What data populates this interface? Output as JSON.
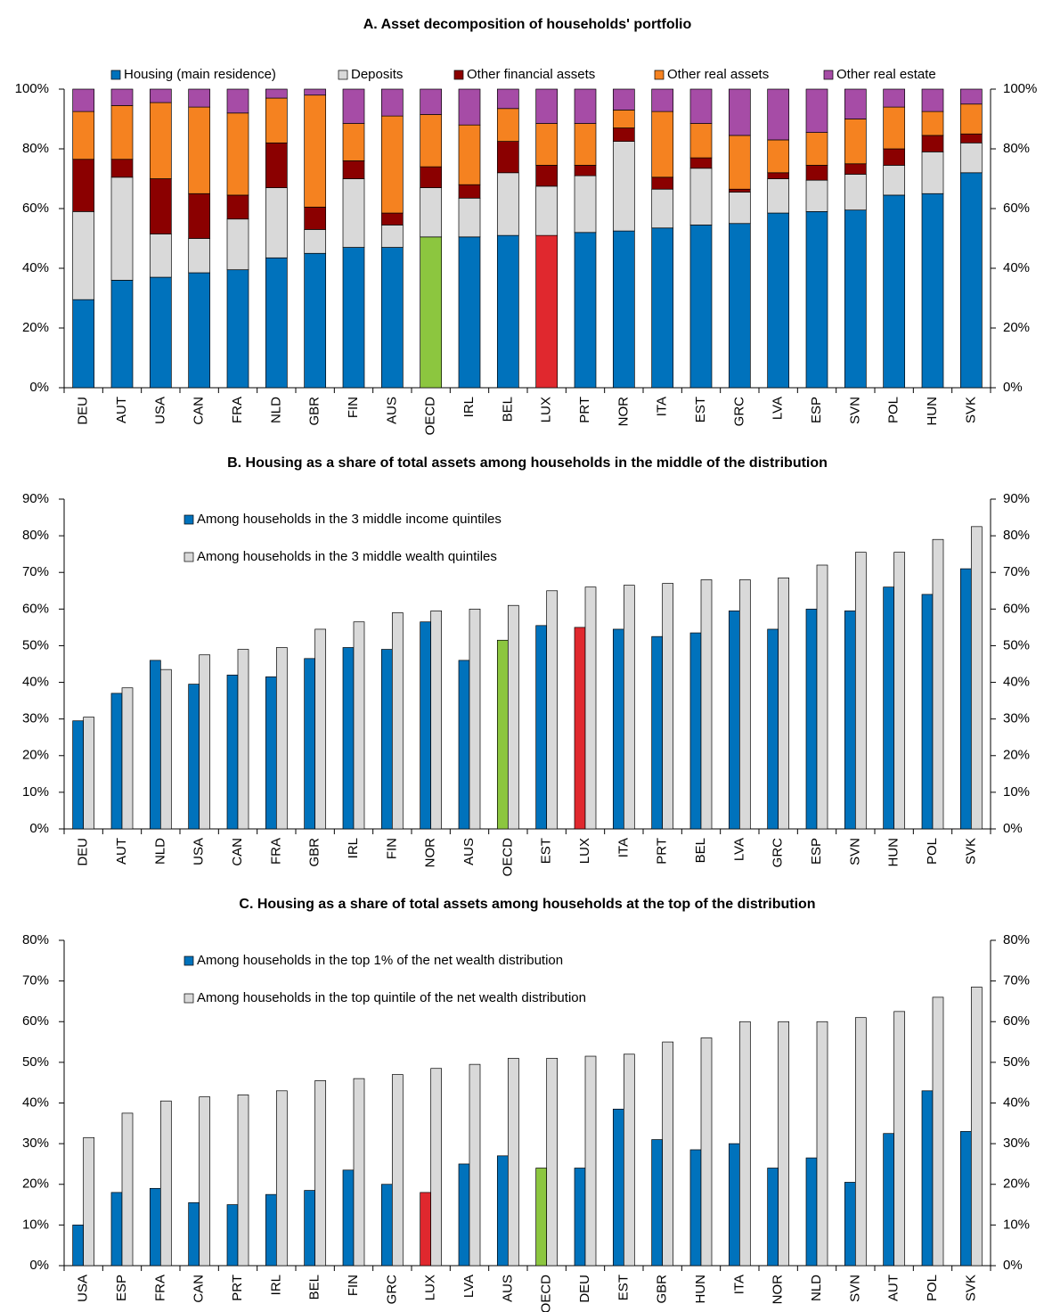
{
  "chart_data": [
    {
      "type": "stacked_bar",
      "title": "A. Asset decomposition of households' portfolio",
      "legend": "top",
      "categories": [
        "DEU",
        "AUT",
        "USA",
        "CAN",
        "FRA",
        "NLD",
        "GBR",
        "FIN",
        "AUS",
        "OECD",
        "IRL",
        "BEL",
        "LUX",
        "PRT",
        "NOR",
        "ITA",
        "EST",
        "GRC",
        "LVA",
        "ESP",
        "SVN",
        "POL",
        "HUN",
        "SVK"
      ],
      "series": [
        {
          "name": "Housing (main residence)",
          "color": "#0072bc",
          "colors": [
            "#0072bc",
            "#0072bc",
            "#0072bc",
            "#0072bc",
            "#0072bc",
            "#0072bc",
            "#0072bc",
            "#0072bc",
            "#0072bc",
            "#8cc63f",
            "#0072bc",
            "#0072bc",
            "#e0282e",
            "#0072bc",
            "#0072bc",
            "#0072bc",
            "#0072bc",
            "#0072bc",
            "#0072bc",
            "#0072bc",
            "#0072bc",
            "#0072bc",
            "#0072bc",
            "#0072bc"
          ],
          "values": [
            29.5,
            36,
            37,
            38.5,
            39.5,
            43.5,
            45,
            47,
            47,
            50.5,
            50.5,
            51,
            51,
            52,
            52.5,
            53.5,
            54.5,
            55,
            58.5,
            59,
            59.5,
            64.5,
            65,
            72
          ]
        },
        {
          "name": "Deposits",
          "color": "#d9d9d9",
          "values": [
            29.5,
            34.5,
            14.5,
            11.5,
            17,
            23.5,
            8,
            23,
            7.5,
            16.5,
            13,
            21,
            16.5,
            19,
            30,
            13,
            19,
            10.5,
            11.5,
            10.5,
            12,
            10,
            14,
            10
          ]
        },
        {
          "name": "Other financial assets",
          "color": "#8b0000",
          "values": [
            17.5,
            6,
            18.5,
            15,
            8,
            15,
            7.5,
            6,
            4,
            7,
            4.5,
            10.5,
            7,
            3.5,
            4.5,
            4,
            3.5,
            1,
            2,
            5,
            3.5,
            5.5,
            5.5,
            3
          ]
        },
        {
          "name": "Other real assets",
          "color": "#f58220",
          "values": [
            16,
            18,
            25.5,
            29,
            27.5,
            15,
            37.5,
            12.5,
            32.5,
            17.5,
            20,
            11,
            14,
            14,
            6,
            22,
            11.5,
            18,
            11,
            11,
            15,
            14,
            8,
            10
          ]
        },
        {
          "name": "Other real estate",
          "color": "#a64ca6",
          "values": [
            7.5,
            5.5,
            4.5,
            6,
            8,
            3,
            2,
            11.5,
            9,
            8.5,
            12,
            6.5,
            11.5,
            11.5,
            7,
            7.5,
            11.5,
            15.5,
            17,
            14.5,
            10,
            6,
            7.5,
            5
          ]
        }
      ],
      "ylim": [
        0,
        100
      ],
      "yticks": [
        {
          "value": 0,
          "label": "0%"
        },
        {
          "value": 20,
          "label": "20%"
        },
        {
          "value": 40,
          "label": "40%"
        },
        {
          "value": 60,
          "label": "60%"
        },
        {
          "value": 80,
          "label": "80%"
        },
        {
          "value": 100,
          "label": "100%"
        }
      ]
    },
    {
      "type": "bar",
      "title": "B. Housing as a share of total assets among households in the middle of the distribution",
      "legend": "upper left",
      "categories": [
        "DEU",
        "AUT",
        "NLD",
        "USA",
        "CAN",
        "FRA",
        "GBR",
        "IRL",
        "FIN",
        "NOR",
        "AUS",
        "OECD",
        "EST",
        "LUX",
        "ITA",
        "PRT",
        "BEL",
        "LVA",
        "GRC",
        "ESP",
        "SVN",
        "HUN",
        "POL",
        "SVK"
      ],
      "series": [
        {
          "name": "Among households in the 3 middle income quintiles",
          "color": "#0072bc",
          "colors": [
            "#0072bc",
            "#0072bc",
            "#0072bc",
            "#0072bc",
            "#0072bc",
            "#0072bc",
            "#0072bc",
            "#0072bc",
            "#0072bc",
            "#0072bc",
            "#0072bc",
            "#8cc63f",
            "#0072bc",
            "#e0282e",
            "#0072bc",
            "#0072bc",
            "#0072bc",
            "#0072bc",
            "#0072bc",
            "#0072bc",
            "#0072bc",
            "#0072bc",
            "#0072bc",
            "#0072bc"
          ],
          "values": [
            29.5,
            37,
            46,
            39.5,
            42,
            41.5,
            46.5,
            49.5,
            49,
            56.5,
            46,
            51.5,
            55.5,
            55,
            54.5,
            52.5,
            53.5,
            59.5,
            54.5,
            60,
            59.5,
            66,
            64,
            71
          ]
        },
        {
          "name": "Among households in the 3 middle wealth quintiles",
          "color": "#d9d9d9",
          "values": [
            30.5,
            38.5,
            43.5,
            47.5,
            49,
            49.5,
            54.5,
            56.5,
            59,
            59.5,
            60,
            61,
            65,
            66,
            66.5,
            67,
            68,
            68,
            68.5,
            72,
            75.5,
            75.5,
            79,
            82.5
          ]
        }
      ],
      "ylim": [
        0,
        90
      ],
      "yticks": [
        {
          "value": 0,
          "label": "0%"
        },
        {
          "value": 10,
          "label": "10%"
        },
        {
          "value": 20,
          "label": "20%"
        },
        {
          "value": 30,
          "label": "30%"
        },
        {
          "value": 40,
          "label": "40%"
        },
        {
          "value": 50,
          "label": "50%"
        },
        {
          "value": 60,
          "label": "60%"
        },
        {
          "value": 70,
          "label": "70%"
        },
        {
          "value": 80,
          "label": "80%"
        },
        {
          "value": 90,
          "label": "90%"
        }
      ]
    },
    {
      "type": "bar",
      "title": "C. Housing as a share of total assets among households at the top of the distribution",
      "legend": "upper left",
      "categories": [
        "USA",
        "ESP",
        "FRA",
        "CAN",
        "PRT",
        "IRL",
        "BEL",
        "FIN",
        "GRC",
        "LUX",
        "LVA",
        "AUS",
        "OECD",
        "DEU",
        "EST",
        "GBR",
        "HUN",
        "ITA",
        "NOR",
        "NLD",
        "SVN",
        "AUT",
        "POL",
        "SVK"
      ],
      "series": [
        {
          "name": "Among households in the top 1% of the net wealth distribution",
          "color": "#0072bc",
          "colors": [
            "#0072bc",
            "#0072bc",
            "#0072bc",
            "#0072bc",
            "#0072bc",
            "#0072bc",
            "#0072bc",
            "#0072bc",
            "#0072bc",
            "#e0282e",
            "#0072bc",
            "#0072bc",
            "#8cc63f",
            "#0072bc",
            "#0072bc",
            "#0072bc",
            "#0072bc",
            "#0072bc",
            "#0072bc",
            "#0072bc",
            "#0072bc",
            "#0072bc",
            "#0072bc",
            "#0072bc"
          ],
          "values": [
            10,
            18,
            19,
            15.5,
            15,
            17.5,
            18.5,
            23.5,
            20,
            18,
            25,
            27,
            24,
            24,
            38.5,
            31,
            28.5,
            30,
            24,
            26.5,
            20.5,
            32.5,
            43,
            33
          ]
        },
        {
          "name": "Among households in the top quintile of the net wealth distribution",
          "color": "#d9d9d9",
          "values": [
            31.5,
            37.5,
            40.5,
            41.5,
            42,
            43,
            45.5,
            46,
            47,
            48.5,
            49.5,
            51,
            51,
            51.5,
            52,
            55,
            56,
            60,
            60,
            60,
            61,
            62.5,
            66,
            68.5
          ]
        }
      ],
      "ylim": [
        0,
        80
      ],
      "yticks": [
        {
          "value": 0,
          "label": "0%"
        },
        {
          "value": 10,
          "label": "10%"
        },
        {
          "value": 20,
          "label": "20%"
        },
        {
          "value": 30,
          "label": "30%"
        },
        {
          "value": 40,
          "label": "40%"
        },
        {
          "value": 50,
          "label": "50%"
        },
        {
          "value": 60,
          "label": "60%"
        },
        {
          "value": 70,
          "label": "70%"
        },
        {
          "value": 80,
          "label": "80%"
        }
      ]
    }
  ]
}
